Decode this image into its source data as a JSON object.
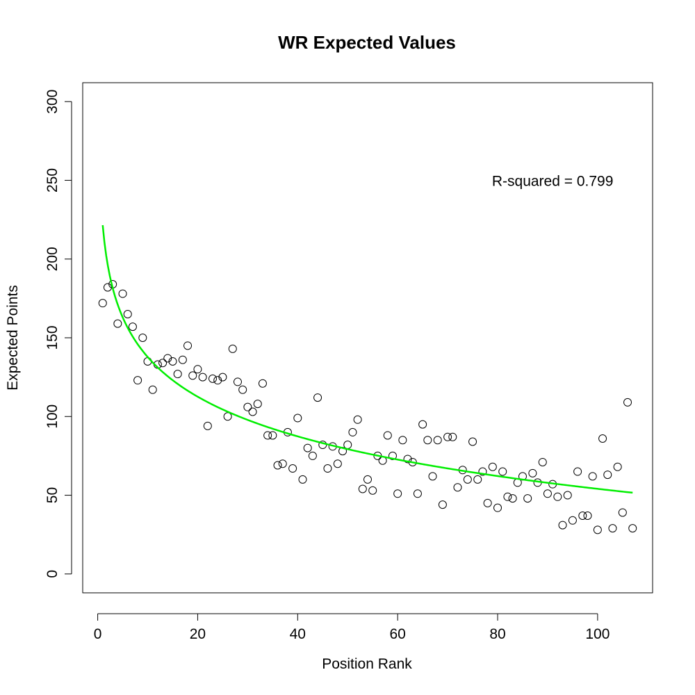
{
  "chart_data": {
    "type": "scatter",
    "title": "WR Expected Values",
    "xlabel": "Position Rank",
    "ylabel": "Expected Points",
    "xlim": [
      -3,
      111
    ],
    "ylim": [
      -12,
      312
    ],
    "x_ticks": [
      0,
      20,
      40,
      60,
      80,
      100
    ],
    "y_ticks": [
      0,
      50,
      100,
      150,
      200,
      250,
      300
    ],
    "annotation": "R-squared = 0.799",
    "annotation_anchor": {
      "x": 91,
      "y": 250
    },
    "grid": false,
    "points": {
      "color": "#000000",
      "x": [
        1,
        2,
        3,
        4,
        5,
        6,
        7,
        8,
        9,
        10,
        11,
        12,
        13,
        14,
        15,
        16,
        17,
        18,
        19,
        20,
        21,
        22,
        23,
        24,
        25,
        26,
        27,
        28,
        29,
        30,
        31,
        32,
        33,
        34,
        35,
        36,
        37,
        38,
        39,
        40,
        41,
        42,
        43,
        44,
        45,
        46,
        47,
        48,
        49,
        50,
        51,
        52,
        53,
        54,
        55,
        56,
        57,
        58,
        59,
        60,
        61,
        62,
        63,
        64,
        65,
        66,
        67,
        68,
        69,
        70,
        71,
        72,
        73,
        74,
        75,
        76,
        77,
        78,
        79,
        80,
        81,
        82,
        83,
        84,
        85,
        86,
        87,
        88,
        89,
        90,
        91,
        92,
        93,
        94,
        95,
        96,
        97,
        98,
        99,
        100,
        101,
        102,
        103,
        104,
        105,
        106,
        107
      ],
      "y": [
        172,
        182,
        184,
        159,
        178,
        165,
        157,
        123,
        150,
        135,
        117,
        133,
        134,
        137,
        135,
        127,
        136,
        145,
        126,
        130,
        125,
        94,
        124,
        123,
        125,
        100,
        143,
        122,
        117,
        106,
        103,
        108,
        121,
        88,
        88,
        69,
        70,
        90,
        67,
        99,
        60,
        80,
        75,
        112,
        82,
        67,
        81,
        70,
        78,
        82,
        90,
        98,
        54,
        60,
        53,
        75,
        72,
        88,
        75,
        51,
        85,
        73,
        71,
        51,
        95,
        85,
        62,
        85,
        44,
        87,
        87,
        55,
        66,
        60,
        84,
        60,
        65,
        45,
        68,
        42,
        65,
        49,
        48,
        58,
        62,
        48,
        64,
        58,
        71,
        51,
        57,
        49,
        31,
        50,
        34,
        65,
        37,
        37,
        62,
        28,
        86,
        63,
        29,
        68,
        39,
        109,
        29
      ]
    },
    "fit_curve": {
      "color": "#00ee00",
      "x_from": 1,
      "x_to": 107,
      "model": "log",
      "intercept": 221.5,
      "slope": -36.36
    }
  }
}
